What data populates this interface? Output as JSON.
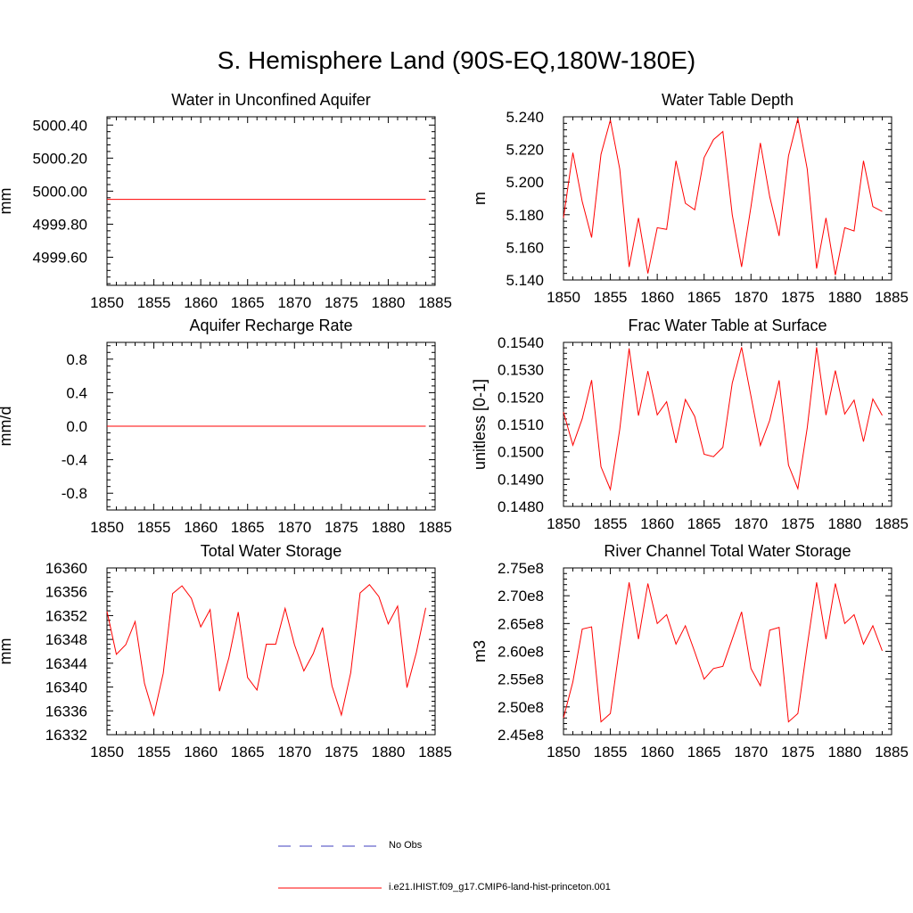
{
  "title": "S. Hemisphere Land (90S-EQ,180W-180E)",
  "colors": {
    "model": "#ff0000",
    "obs": "#3f3fbf",
    "axis": "#000000"
  },
  "legend": {
    "obs_label": "No Obs",
    "model_label": "i.e21.IHIST.f09_g17.CMIP6-land-hist-princeton.001"
  },
  "chart_data": [
    {
      "type": "line",
      "title": "Water in Unconfined Aquifer",
      "xlabel": "",
      "ylabel": "mm",
      "xlim": [
        1850,
        1885
      ],
      "ylim": [
        4999.43,
        5000.45
      ],
      "xticks": [
        1850,
        1855,
        1860,
        1865,
        1870,
        1875,
        1880,
        1885
      ],
      "xtick_labels": [
        "1850",
        "1855",
        "1860",
        "1865",
        "1870",
        "1875",
        "1880",
        "1885"
      ],
      "yticks": [
        4999.6,
        4999.8,
        5000.0,
        5000.2,
        5000.4
      ],
      "ytick_labels": [
        "4999.60",
        "4999.80",
        "5000.00",
        "5000.20",
        "5000.40"
      ],
      "series": [
        {
          "x": [
            1850,
            1851,
            1852,
            1853,
            1854,
            1855,
            1856,
            1857,
            1858,
            1859,
            1860,
            1861,
            1862,
            1863,
            1864,
            1865,
            1866,
            1867,
            1868,
            1869,
            1870,
            1871,
            1872,
            1873,
            1874,
            1875,
            1876,
            1877,
            1878,
            1879,
            1880,
            1881,
            1882,
            1883,
            1884
          ],
          "y": [
            4999.95,
            4999.95,
            4999.95,
            4999.95,
            4999.95,
            4999.95,
            4999.95,
            4999.95,
            4999.95,
            4999.95,
            4999.95,
            4999.95,
            4999.95,
            4999.95,
            4999.95,
            4999.95,
            4999.95,
            4999.95,
            4999.95,
            4999.95,
            4999.95,
            4999.95,
            4999.95,
            4999.95,
            4999.95,
            4999.95,
            4999.95,
            4999.95,
            4999.95,
            4999.95,
            4999.95,
            4999.95,
            4999.95,
            4999.95,
            4999.95
          ]
        }
      ]
    },
    {
      "type": "line",
      "title": "Water Table Depth",
      "xlabel": "",
      "ylabel": "m",
      "xlim": [
        1850,
        1885
      ],
      "ylim": [
        5.14,
        5.24
      ],
      "xticks": [
        1850,
        1855,
        1860,
        1865,
        1870,
        1875,
        1880,
        1885
      ],
      "xtick_labels": [
        "1850",
        "1855",
        "1860",
        "1865",
        "1870",
        "1875",
        "1880",
        "1885"
      ],
      "yticks": [
        5.14,
        5.16,
        5.18,
        5.2,
        5.22,
        5.24
      ],
      "ytick_labels": [
        "5.140",
        "5.160",
        "5.180",
        "5.200",
        "5.220",
        "5.240"
      ],
      "series": [
        {
          "x": [
            1850,
            1851,
            1852,
            1853,
            1854,
            1855,
            1856,
            1857,
            1858,
            1859,
            1860,
            1861,
            1862,
            1863,
            1864,
            1865,
            1866,
            1867,
            1868,
            1869,
            1870,
            1871,
            1872,
            1873,
            1874,
            1875,
            1876,
            1877,
            1878,
            1879,
            1880,
            1881,
            1882,
            1883,
            1884
          ],
          "y": [
            5.178,
            5.218,
            5.188,
            5.166,
            5.217,
            5.238,
            5.208,
            5.148,
            5.178,
            5.144,
            5.172,
            5.171,
            5.213,
            5.187,
            5.183,
            5.215,
            5.226,
            5.231,
            5.18,
            5.148,
            5.185,
            5.224,
            5.191,
            5.167,
            5.216,
            5.239,
            5.208,
            5.147,
            5.178,
            5.143,
            5.172,
            5.17,
            5.213,
            5.185,
            5.182
          ]
        }
      ]
    },
    {
      "type": "line",
      "title": "Aquifer Recharge Rate",
      "xlabel": "",
      "ylabel": "mm/d",
      "xlim": [
        1850,
        1885
      ],
      "ylim": [
        -1.0,
        1.0
      ],
      "xticks": [
        1850,
        1855,
        1860,
        1865,
        1870,
        1875,
        1880,
        1885
      ],
      "xtick_labels": [
        "1850",
        "1855",
        "1860",
        "1865",
        "1870",
        "1875",
        "1880",
        "1885"
      ],
      "yticks": [
        -0.8,
        -0.4,
        0.0,
        0.4,
        0.8
      ],
      "ytick_labels": [
        "-0.8",
        "-0.4",
        "0.0",
        "0.4",
        "0.8"
      ],
      "series": [
        {
          "x": [
            1850,
            1851,
            1852,
            1853,
            1854,
            1855,
            1856,
            1857,
            1858,
            1859,
            1860,
            1861,
            1862,
            1863,
            1864,
            1865,
            1866,
            1867,
            1868,
            1869,
            1870,
            1871,
            1872,
            1873,
            1874,
            1875,
            1876,
            1877,
            1878,
            1879,
            1880,
            1881,
            1882,
            1883,
            1884
          ],
          "y": [
            0,
            0,
            0,
            0,
            0,
            0,
            0,
            0,
            0,
            0,
            0,
            0,
            0,
            0,
            0,
            0,
            0,
            0,
            0,
            0,
            0,
            0,
            0,
            0,
            0,
            0,
            0,
            0,
            0,
            0,
            0,
            0,
            0,
            0,
            0
          ]
        }
      ]
    },
    {
      "type": "line",
      "title": "Frac Water Table at Surface",
      "xlabel": "",
      "ylabel": "unitless [0-1]",
      "xlim": [
        1850,
        1885
      ],
      "ylim": [
        0.148,
        0.154
      ],
      "xticks": [
        1850,
        1855,
        1860,
        1865,
        1870,
        1875,
        1880,
        1885
      ],
      "xtick_labels": [
        "1850",
        "1855",
        "1860",
        "1865",
        "1870",
        "1875",
        "1880",
        "1885"
      ],
      "yticks": [
        0.148,
        0.149,
        0.15,
        0.151,
        0.152,
        0.153,
        0.154
      ],
      "ytick_labels": [
        "0.1480",
        "0.1490",
        "0.1500",
        "0.1510",
        "0.1520",
        "0.1530",
        "0.1540"
      ],
      "series": [
        {
          "x": [
            1850,
            1851,
            1852,
            1853,
            1854,
            1855,
            1856,
            1857,
            1858,
            1859,
            1860,
            1861,
            1862,
            1863,
            1864,
            1865,
            1866,
            1867,
            1868,
            1869,
            1870,
            1871,
            1872,
            1873,
            1874,
            1875,
            1876,
            1877,
            1878,
            1879,
            1880,
            1881,
            1882,
            1883,
            1884
          ],
          "y": [
            0.15145,
            0.15024,
            0.15121,
            0.15262,
            0.14945,
            0.14862,
            0.15082,
            0.15378,
            0.15132,
            0.15295,
            0.15135,
            0.15183,
            0.15032,
            0.15191,
            0.15129,
            0.14991,
            0.14982,
            0.15016,
            0.15251,
            0.15382,
            0.15203,
            0.15023,
            0.15115,
            0.15261,
            0.14951,
            0.14865,
            0.15087,
            0.15382,
            0.15134,
            0.15297,
            0.15138,
            0.15189,
            0.15037,
            0.15193,
            0.15133
          ]
        }
      ]
    },
    {
      "type": "line",
      "title": "Total Water Storage",
      "xlabel": "",
      "ylabel": "mm",
      "xlim": [
        1850,
        1885
      ],
      "ylim": [
        16332,
        16360
      ],
      "xticks": [
        1850,
        1855,
        1860,
        1865,
        1870,
        1875,
        1880,
        1885
      ],
      "xtick_labels": [
        "1850",
        "1855",
        "1860",
        "1865",
        "1870",
        "1875",
        "1880",
        "1885"
      ],
      "yticks": [
        16332,
        16336,
        16340,
        16344,
        16348,
        16352,
        16356,
        16360
      ],
      "ytick_labels": [
        "16332",
        "16336",
        "16340",
        "16344",
        "16348",
        "16352",
        "16356",
        "16360"
      ],
      "series": [
        {
          "x": [
            1850,
            1851,
            1852,
            1853,
            1854,
            1855,
            1856,
            1857,
            1858,
            1859,
            1860,
            1861,
            1862,
            1863,
            1864,
            1865,
            1866,
            1867,
            1868,
            1869,
            1870,
            1871,
            1872,
            1873,
            1874,
            1875,
            1876,
            1877,
            1878,
            1879,
            1880,
            1881,
            1882,
            1883,
            1884
          ],
          "y": [
            16352.7,
            16345.5,
            16347.1,
            16351.0,
            16340.6,
            16335.3,
            16342.3,
            16355.7,
            16357.0,
            16354.9,
            16350.1,
            16353.0,
            16339.3,
            16344.9,
            16352.6,
            16341.6,
            16339.5,
            16347.2,
            16347.2,
            16353.2,
            16347.1,
            16342.7,
            16345.6,
            16350.0,
            16340.2,
            16335.3,
            16342.4,
            16355.8,
            16357.2,
            16355.2,
            16350.6,
            16353.6,
            16339.9,
            16345.8,
            16353.3
          ]
        }
      ]
    },
    {
      "type": "line",
      "title": "River Channel Total Water Storage",
      "xlabel": "",
      "ylabel": "m3",
      "xlim": [
        1850,
        1885
      ],
      "ylim": [
        245000000,
        275000000
      ],
      "xticks": [
        1850,
        1855,
        1860,
        1865,
        1870,
        1875,
        1880,
        1885
      ],
      "xtick_labels": [
        "1850",
        "1855",
        "1860",
        "1865",
        "1870",
        "1875",
        "1880",
        "1885"
      ],
      "yticks": [
        245000000,
        250000000,
        255000000,
        260000000,
        265000000,
        270000000,
        275000000
      ],
      "ytick_labels": [
        "2.45e8",
        "2.50e8",
        "2.55e8",
        "2.60e8",
        "2.65e8",
        "2.70e8",
        "2.75e8"
      ],
      "series": [
        {
          "x": [
            1850,
            1851,
            1852,
            1853,
            1854,
            1855,
            1856,
            1857,
            1858,
            1859,
            1860,
            1861,
            1862,
            1863,
            1864,
            1865,
            1866,
            1867,
            1868,
            1869,
            1870,
            1871,
            1872,
            1873,
            1874,
            1875,
            1876,
            1877,
            1878,
            1879,
            1880,
            1881,
            1882,
            1883,
            1884
          ],
          "y": [
            248000000,
            254500000,
            264000000,
            264400000,
            247300000,
            248800000,
            261000000,
            272400000,
            262200000,
            272200000,
            265000000,
            266600000,
            261300000,
            264600000,
            259900000,
            255000000,
            256900000,
            257300000,
            262200000,
            267100000,
            256900000,
            253800000,
            263800000,
            264300000,
            247300000,
            248800000,
            261000000,
            272400000,
            262200000,
            272200000,
            265000000,
            266600000,
            261300000,
            264600000,
            260100000
          ]
        }
      ]
    }
  ]
}
